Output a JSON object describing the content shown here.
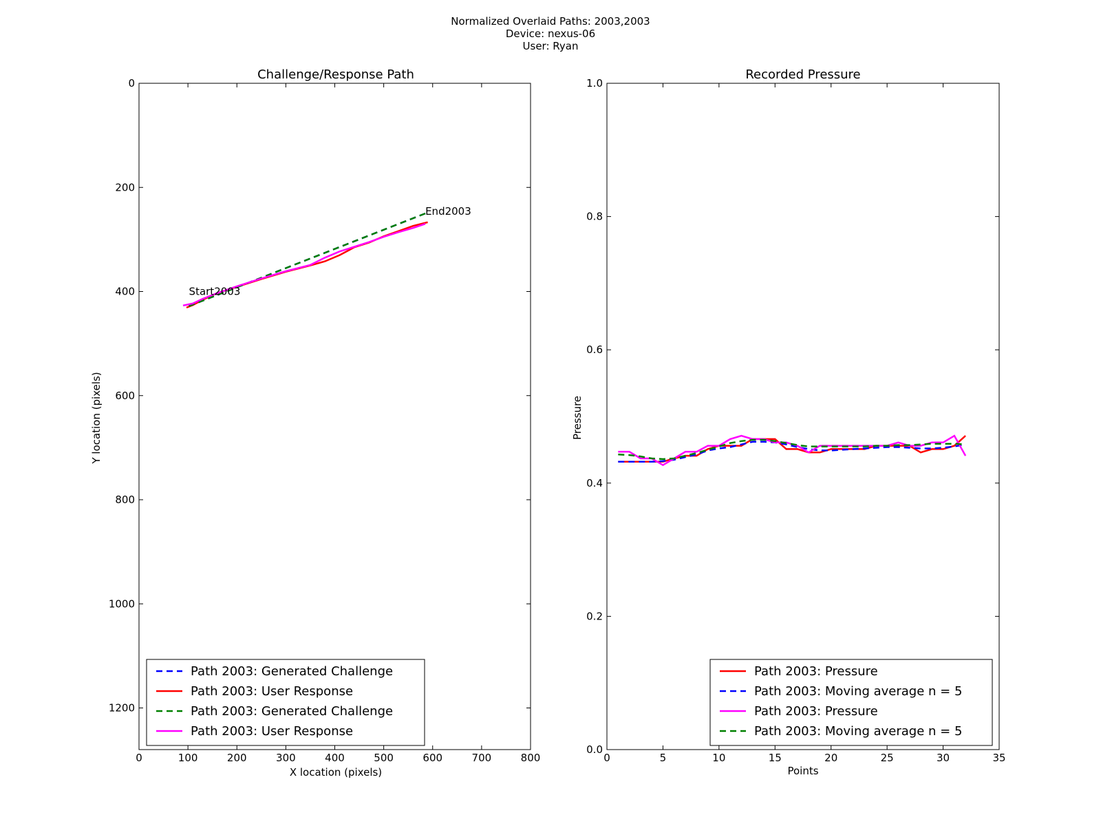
{
  "figure": {
    "suptitle_lines": [
      "Normalized Overlaid Paths: 2003,2003",
      "Device: nexus-06",
      "User: Ryan"
    ]
  },
  "chart_data": [
    {
      "type": "line",
      "title": "Challenge/Response Path",
      "xlabel": "X location (pixels)",
      "ylabel": "Y location (pixels)",
      "xlim": [
        0,
        800
      ],
      "ylim": [
        1280,
        0
      ],
      "y_inverted": true,
      "xticks": [
        0,
        100,
        200,
        300,
        400,
        500,
        600,
        700,
        800
      ],
      "yticks": [
        0,
        200,
        400,
        600,
        800,
        1000,
        1200
      ],
      "grid": false,
      "legend_position": "lower-left",
      "annotations": [
        {
          "text": "Start2003",
          "x": 102,
          "y": 400
        },
        {
          "text": "End2003",
          "x": 585,
          "y": 246
        }
      ],
      "series": [
        {
          "name": "Path 2003: Generated Challenge",
          "color": "#0000ff",
          "style": "dashed",
          "x": [
            102,
            585
          ],
          "y": [
            428,
            250
          ]
        },
        {
          "name": "Path 2003: User Response",
          "color": "#ff0000",
          "style": "solid",
          "x": [
            97,
            110,
            130,
            160,
            200,
            250,
            300,
            350,
            380,
            410,
            440,
            470,
            500,
            530,
            560,
            590
          ],
          "y": [
            431,
            426,
            416,
            403,
            391,
            376,
            362,
            350,
            342,
            330,
            315,
            306,
            294,
            284,
            274,
            267
          ]
        },
        {
          "name": "Path 2003: Generated Challenge",
          "color": "#008000",
          "style": "dashed",
          "x": [
            102,
            585
          ],
          "y": [
            428,
            250
          ]
        },
        {
          "name": "Path 2003: User Response",
          "color": "#ff00ff",
          "style": "solid",
          "x": [
            90,
            110,
            130,
            160,
            200,
            250,
            300,
            350,
            380,
            410,
            440,
            470,
            500,
            530,
            560,
            585
          ],
          "y": [
            427,
            423,
            414,
            403,
            390,
            375,
            361,
            349,
            335,
            323,
            314,
            305,
            295,
            286,
            278,
            270
          ]
        }
      ]
    },
    {
      "type": "line",
      "title": "Recorded Pressure",
      "xlabel": "Points",
      "ylabel": "Pressure",
      "xlim": [
        0,
        35
      ],
      "ylim": [
        0.0,
        1.0
      ],
      "xticks": [
        0,
        5,
        10,
        15,
        20,
        25,
        30,
        35
      ],
      "yticks": [
        0.0,
        0.2,
        0.4,
        0.6,
        0.8,
        1.0
      ],
      "ytick_labels": [
        "0.0",
        "0.2",
        "0.4",
        "0.6",
        "0.8",
        "1.0"
      ],
      "grid": false,
      "legend_position": "lower-right",
      "x": [
        1,
        2,
        3,
        4,
        5,
        6,
        7,
        8,
        9,
        10,
        11,
        12,
        13,
        14,
        15,
        16,
        17,
        18,
        19,
        20,
        21,
        22,
        23,
        24,
        25,
        26,
        27,
        28,
        29,
        30,
        31,
        32
      ],
      "series": [
        {
          "name": "Path 2003: Pressure",
          "color": "#ff0000",
          "style": "solid",
          "values": [
            0.432,
            0.432,
            0.432,
            0.432,
            0.432,
            0.437,
            0.441,
            0.441,
            0.451,
            0.456,
            0.456,
            0.456,
            0.466,
            0.466,
            0.466,
            0.451,
            0.451,
            0.446,
            0.446,
            0.451,
            0.451,
            0.451,
            0.451,
            0.456,
            0.456,
            0.456,
            0.456,
            0.446,
            0.451,
            0.451,
            0.456,
            0.471
          ]
        },
        {
          "name": "Path 2003: Moving average n = 5",
          "color": "#0000ff",
          "style": "dashed",
          "values": [
            0.432,
            0.432,
            0.432,
            0.432,
            0.433,
            0.435,
            0.439,
            0.443,
            0.449,
            0.452,
            0.454,
            0.458,
            0.462,
            0.462,
            0.461,
            0.458,
            0.454,
            0.451,
            0.449,
            0.449,
            0.45,
            0.451,
            0.452,
            0.453,
            0.454,
            0.454,
            0.453,
            0.452,
            0.452,
            0.453,
            0.455,
            0.458
          ]
        },
        {
          "name": "Path 2003: Pressure",
          "color": "#ff00ff",
          "style": "solid",
          "values": [
            0.447,
            0.447,
            0.437,
            0.437,
            0.427,
            0.437,
            0.447,
            0.447,
            0.456,
            0.456,
            0.466,
            0.471,
            0.466,
            0.466,
            0.461,
            0.461,
            0.456,
            0.446,
            0.456,
            0.456,
            0.456,
            0.456,
            0.456,
            0.456,
            0.456,
            0.461,
            0.456,
            0.456,
            0.461,
            0.461,
            0.471,
            0.441
          ]
        },
        {
          "name": "Path 2003: Moving average n = 5",
          "color": "#008000",
          "style": "dashed",
          "values": [
            0.443,
            0.442,
            0.44,
            0.437,
            0.436,
            0.437,
            0.441,
            0.445,
            0.45,
            0.455,
            0.46,
            0.463,
            0.465,
            0.465,
            0.463,
            0.46,
            0.457,
            0.455,
            0.455,
            0.455,
            0.455,
            0.455,
            0.455,
            0.456,
            0.456,
            0.457,
            0.457,
            0.458,
            0.459,
            0.459,
            0.459,
            0.458
          ]
        }
      ]
    }
  ]
}
